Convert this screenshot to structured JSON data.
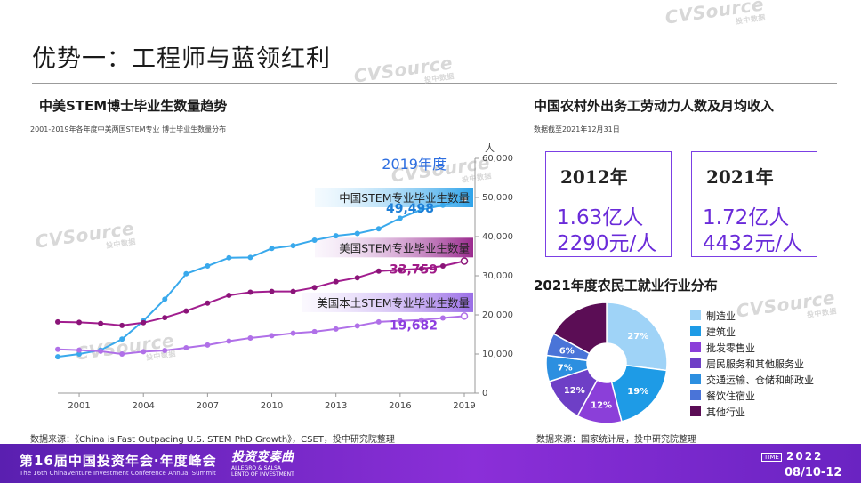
{
  "page": {
    "title": "优势一：工程师与蓝领红利",
    "watermark": "CVSource",
    "watermark_sub": "投中数据"
  },
  "left": {
    "section_title": "中美STEM博士毕业生数量趋势",
    "subtitle": "2001-2019年各年度中美两国STEM专业 博士毕业生数量分布",
    "source": "数据来源：《China is Fast Outpacing U.S. STEM PhD Growth》，CSET，投中研究院整理"
  },
  "right": {
    "section_title": "中国农村外出务工劳动力人数及月均收入",
    "subtitle": "数据截至2021年12月31日",
    "box_2012": {
      "year": "2012年",
      "workers": "1.63亿人",
      "income": "2290元/人"
    },
    "box_2021": {
      "year": "2021年",
      "workers": "1.72亿人",
      "income": "4432元/人"
    },
    "pie_title": "2021年度农民工就业行业分布",
    "source": "数据来源：国家统计局，投中研究院整理"
  },
  "footer": {
    "title": "第16届中国投资年会·年度峰会",
    "subtitle": "The 16th ChinaVenture Investment Conference Annual Summit",
    "logo_main": "投资变奏曲",
    "logo_sub1": "ALLEGRO & SALSA",
    "logo_sub2": "LENTO OF INVESTMENT",
    "time_label": "TIME",
    "year": "2022",
    "date": "08/10-12"
  },
  "chart_data": [
    {
      "type": "line",
      "title": "中美STEM博士毕业生数量趋势",
      "unit_label": "人",
      "annotation": "2019年度",
      "x": [
        2000,
        2001,
        2002,
        2003,
        2004,
        2005,
        2006,
        2007,
        2008,
        2009,
        2010,
        2011,
        2012,
        2013,
        2014,
        2015,
        2016,
        2017,
        2018,
        2019
      ],
      "x_ticks": [
        "2001",
        "2004",
        "2007",
        "2010",
        "2013",
        "2016",
        "2019"
      ],
      "x_tick_values": [
        2001,
        2004,
        2007,
        2010,
        2013,
        2016,
        2019
      ],
      "y_ticks": [
        "0",
        "10,000",
        "20,000",
        "30,000",
        "40,000",
        "50,000",
        "60,000"
      ],
      "ylim": [
        0,
        60000
      ],
      "series": [
        {
          "name": "中国STEM专业毕业生数量",
          "color": "#39a9ec",
          "marker": "#39a9ec",
          "end_label": "49,498",
          "end_label_color": "#1e7fd6",
          "values": [
            9300,
            10000,
            11000,
            13800,
            18500,
            24000,
            30500,
            32500,
            34600,
            34700,
            37000,
            37700,
            39100,
            40200,
            40800,
            42000,
            44700,
            46900,
            48000,
            49498
          ]
        },
        {
          "name": "美国STEM专业毕业生数量",
          "color": "#a11d8e",
          "marker": "#8a1478",
          "end_label": "33,759",
          "end_label_color": "#a01a88",
          "values": [
            18200,
            18100,
            17800,
            17300,
            18000,
            19300,
            21000,
            23000,
            25000,
            25800,
            26000,
            26000,
            27000,
            28500,
            29500,
            31200,
            31500,
            31800,
            32500,
            33759
          ]
        },
        {
          "name": "美国本土STEM专业毕业生数量",
          "color": "#b070e8",
          "marker": "#b070e8",
          "end_label": "19,682",
          "end_label_color": "#8d3ee0",
          "values": [
            11200,
            11000,
            10700,
            10000,
            10600,
            10900,
            11600,
            12300,
            13300,
            14100,
            14700,
            15300,
            15700,
            16400,
            17200,
            18200,
            18500,
            18700,
            19200,
            19682
          ]
        }
      ]
    },
    {
      "type": "pie",
      "title": "2021年度农民工就业行业分布",
      "categories": [
        "制造业",
        "建筑业",
        "批发零售业",
        "居民服务和其他服务业",
        "交通运输、仓储和邮政业",
        "餐饮住宿业",
        "其他行业"
      ],
      "values": [
        27,
        19,
        12,
        12,
        7,
        6,
        17
      ],
      "labels": [
        "27%",
        "19%",
        "12%",
        "12%",
        "7%",
        "6%",
        ""
      ],
      "colors": [
        "#9fd3f7",
        "#1e9be6",
        "#8b3fd9",
        "#6e3fc6",
        "#2c8fe0",
        "#4a74d8",
        "#5b0d55"
      ]
    }
  ]
}
